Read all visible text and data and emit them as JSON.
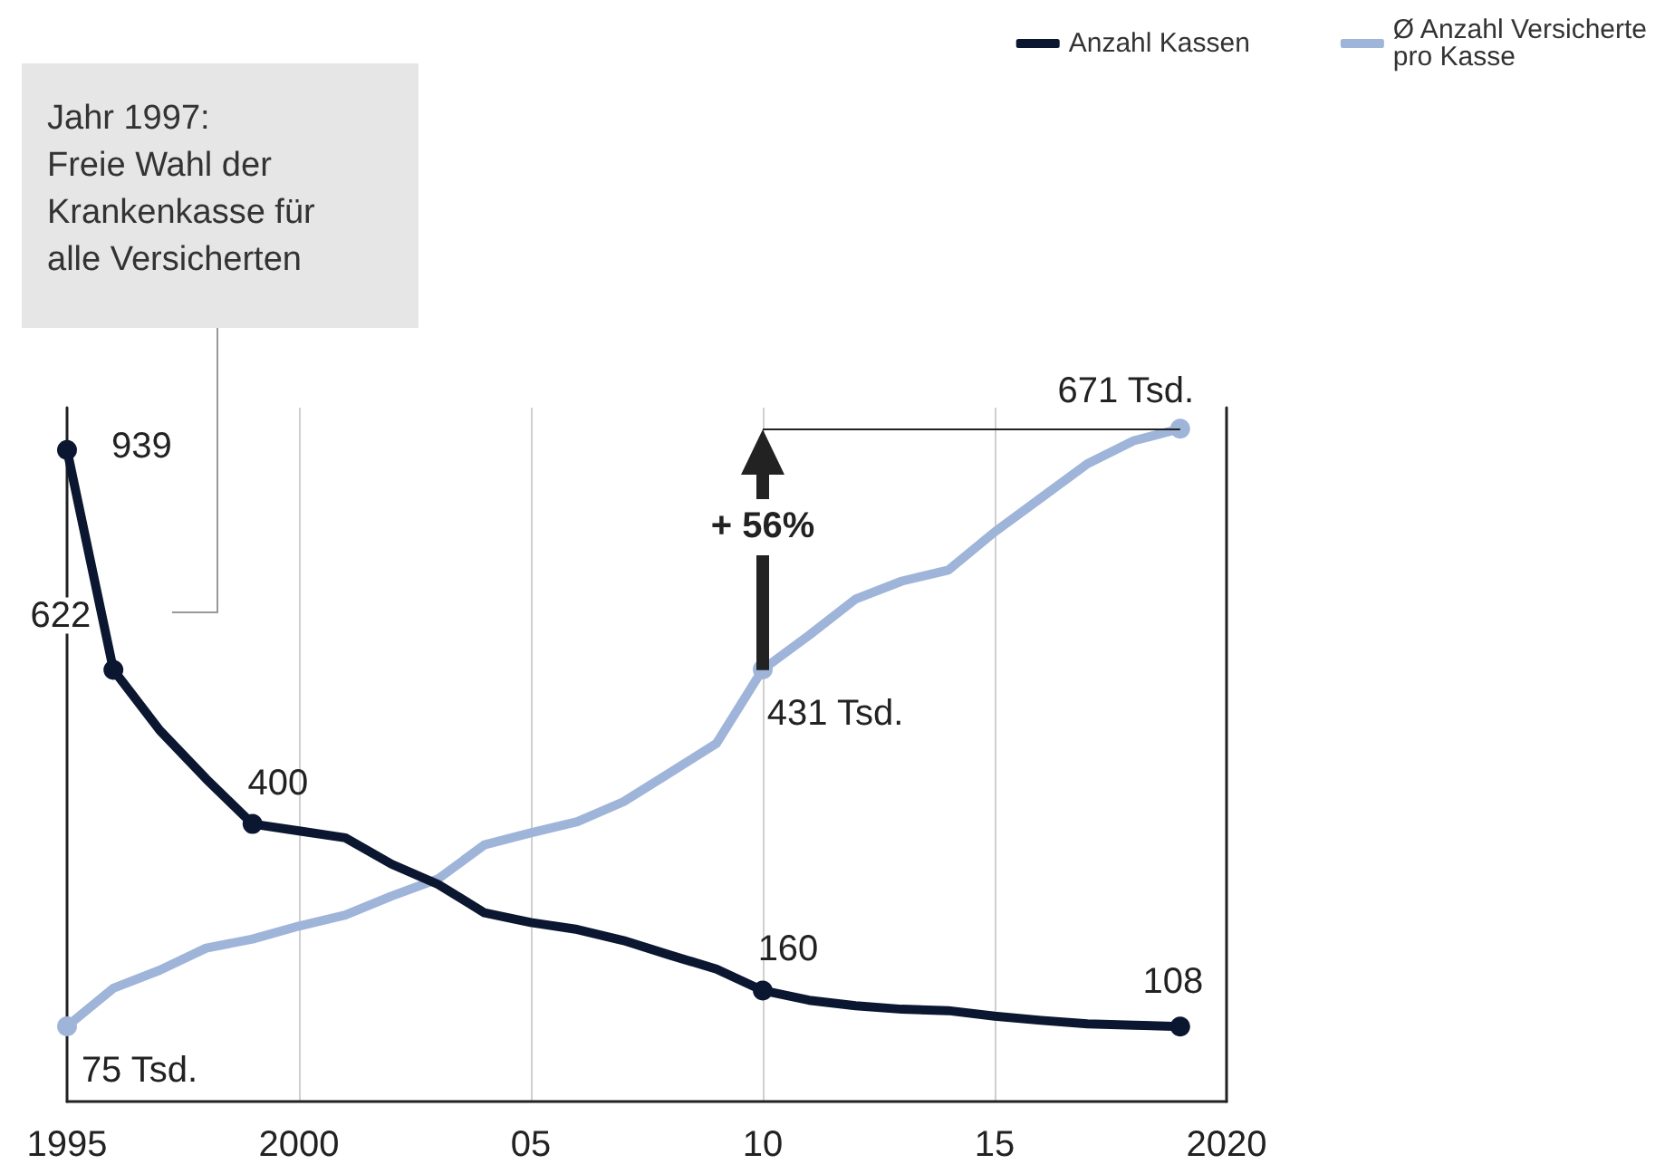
{
  "chart_data": {
    "type": "line",
    "x": [
      1995,
      1996,
      1997,
      1998,
      1999,
      2000,
      2001,
      2002,
      2003,
      2004,
      2005,
      2006,
      2007,
      2008,
      2009,
      2010,
      2011,
      2012,
      2013,
      2014,
      2015,
      2016,
      2017,
      2018,
      2019
    ],
    "series": [
      {
        "name": "Anzahl Kassen",
        "color": "#0b1730",
        "values": [
          939,
          622,
          535,
          465,
          400,
          390,
          380,
          342,
          313,
          272,
          258,
          248,
          232,
          211,
          191,
          160,
          146,
          138,
          133,
          131,
          123,
          117,
          112,
          110,
          108
        ],
        "value_labels": [
          "939",
          "622",
          null,
          null,
          "400",
          null,
          null,
          null,
          null,
          null,
          null,
          null,
          null,
          null,
          null,
          "160",
          null,
          null,
          null,
          null,
          null,
          null,
          null,
          null,
          "108"
        ]
      },
      {
        "name": "Ø Anzahl Versicherte pro Kasse",
        "color": "#9fb4d9",
        "axis": "y2",
        "values": [
          75,
          113,
          131,
          153,
          162,
          175,
          186,
          205,
          222,
          256,
          268,
          279,
          299,
          328,
          357,
          431,
          465,
          501,
          519,
          530,
          568,
          602,
          636,
          659,
          671
        ],
        "value_labels": [
          "75 Tsd.",
          null,
          null,
          null,
          null,
          null,
          null,
          null,
          null,
          null,
          null,
          null,
          null,
          null,
          null,
          "431 Tsd.",
          null,
          null,
          null,
          null,
          null,
          null,
          null,
          null,
          "671 Tsd."
        ]
      }
    ],
    "xlim": [
      1995,
      2020
    ],
    "xticks": [
      1995,
      2000,
      {
        "value": 2005,
        "label": "05"
      },
      {
        "value": 2010,
        "label": "10"
      },
      {
        "value": 2015,
        "label": "15"
      },
      2020
    ],
    "ylim": [
      0,
      1000
    ],
    "y2lim": [
      0,
      692
    ],
    "tick_labels": "x",
    "grid": "x",
    "legend": "top right",
    "line_style": "solid",
    "annotations": [
      "Jahr 1997:\nFreie Wahl der\nKrankenkasse für\nalle Versicherten",
      "+ 56%"
    ]
  }
}
